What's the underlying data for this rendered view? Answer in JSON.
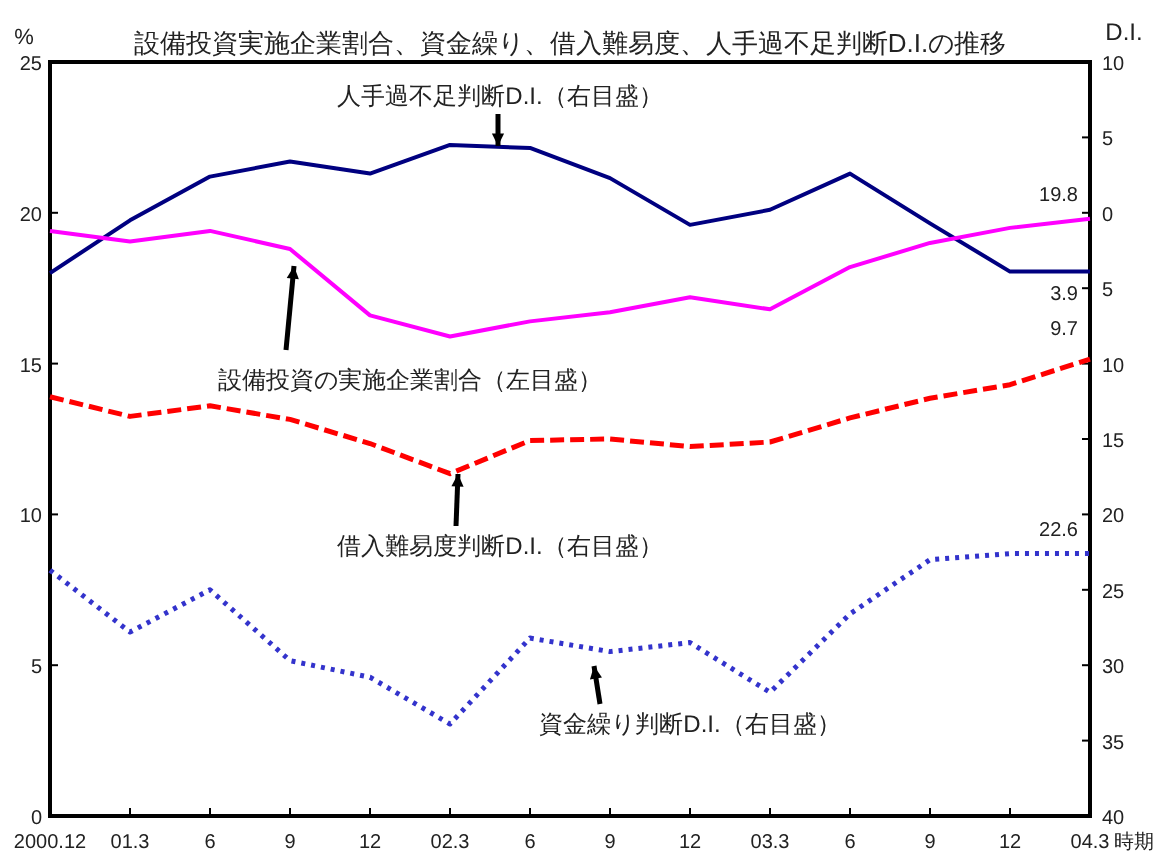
{
  "chart_data": {
    "type": "line",
    "title": "設備投資実施企業割合、資金繰り、借入難易度、人手過不足判断D.I.の推移",
    "ylabel": "%",
    "y2label": "D.I.",
    "xlabel": "時期",
    "categories": [
      "2000.12",
      "01.3",
      "6",
      "9",
      "12",
      "02.3",
      "6",
      "9",
      "12",
      "03.3",
      "6",
      "9",
      "12",
      "04.3"
    ],
    "ylim": [
      0,
      25
    ],
    "yticks": [
      0,
      5,
      10,
      15,
      20,
      25
    ],
    "y2lim": [
      40,
      -10
    ],
    "y2ticks": [
      {
        "value": -10,
        "label": "10"
      },
      {
        "value": -5,
        "label": "5"
      },
      0,
      5,
      10,
      15,
      20,
      25,
      30,
      35,
      40
    ],
    "series": [
      {
        "name": "人手過不足判断D.I.（右目盛）",
        "color": "#000080",
        "axis": "y2",
        "line_style": "solid",
        "values": [
          4.0,
          0.5,
          -2.4,
          -3.4,
          -2.6,
          -4.5,
          -4.3,
          -2.3,
          0.8,
          -0.2,
          -2.6,
          0.7,
          3.9,
          3.9
        ],
        "value_labels": [
          null,
          null,
          null,
          null,
          null,
          null,
          null,
          null,
          null,
          null,
          null,
          null,
          null,
          "3.9"
        ]
      },
      {
        "name": "設備投資の実施企業割合（左目盛）",
        "color": "#ff00ff",
        "axis": "y",
        "line_style": "solid",
        "values": [
          19.4,
          19.05,
          19.4,
          18.8,
          16.6,
          15.9,
          16.4,
          16.7,
          17.2,
          16.8,
          18.2,
          19.0,
          19.5,
          19.8
        ],
        "value_labels": [
          null,
          null,
          null,
          null,
          null,
          null,
          null,
          null,
          null,
          null,
          null,
          null,
          null,
          "19.8"
        ]
      },
      {
        "name": "借入難易度判断D.I.（右目盛）",
        "color": "#ff0000",
        "axis": "y2",
        "line_style": "dashed",
        "values": [
          12.2,
          13.5,
          12.8,
          13.7,
          15.3,
          17.3,
          15.1,
          15.0,
          15.5,
          15.2,
          13.6,
          12.3,
          11.4,
          9.7
        ],
        "value_labels": [
          null,
          null,
          null,
          null,
          null,
          null,
          null,
          null,
          null,
          null,
          null,
          null,
          null,
          "9.7"
        ]
      },
      {
        "name": "資金繰り判断D.I.（右目盛）",
        "color": "#3333cc",
        "axis": "y2",
        "line_style": "dotted",
        "values": [
          23.7,
          27.8,
          25.0,
          29.7,
          30.8,
          33.9,
          28.2,
          29.1,
          28.5,
          31.8,
          26.6,
          23.0,
          22.6,
          22.6
        ],
        "value_labels": [
          null,
          null,
          null,
          null,
          null,
          null,
          null,
          null,
          null,
          null,
          null,
          null,
          null,
          "22.6"
        ]
      }
    ]
  }
}
